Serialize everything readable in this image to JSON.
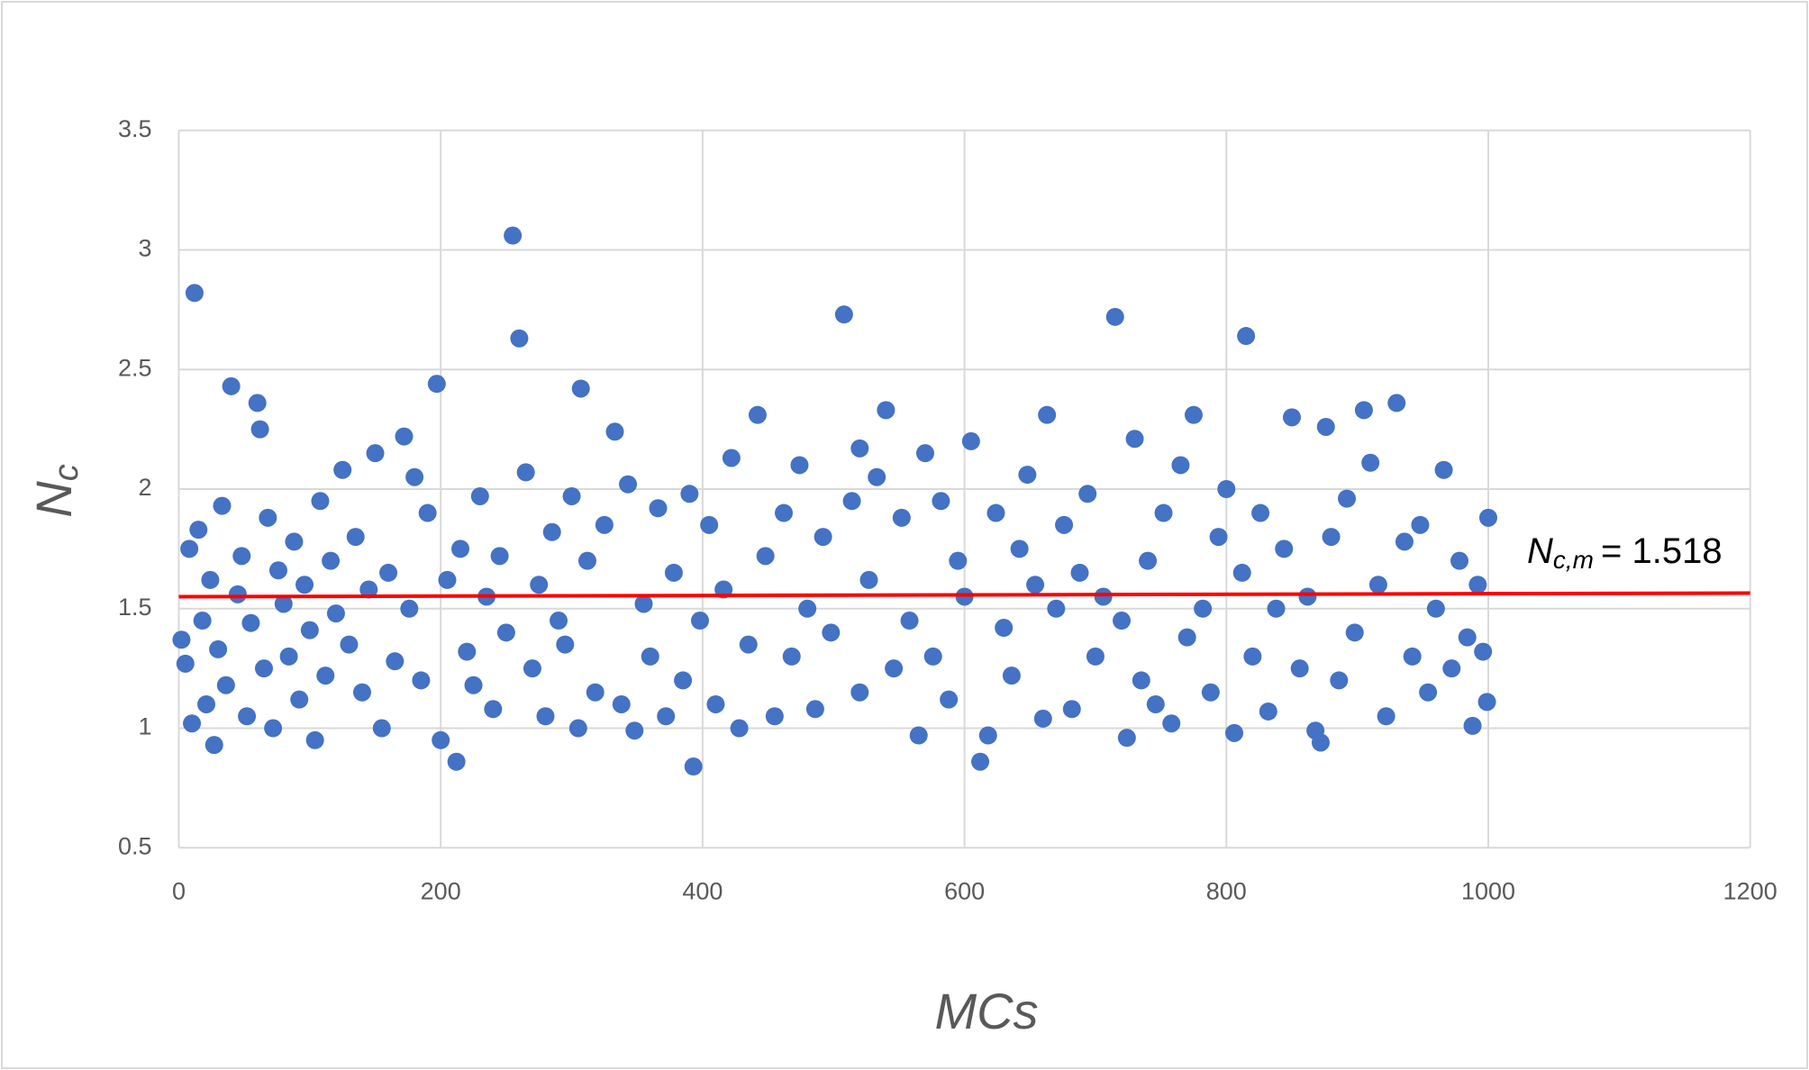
{
  "chart_data": {
    "type": "scatter",
    "x_label": "MCs",
    "y_label": {
      "main": "N",
      "sub": "c"
    },
    "annotation": {
      "main": "N",
      "sub": "c,m",
      "rest": "= 1.518"
    },
    "xlim": [
      0,
      1200
    ],
    "xticks": [
      0,
      200,
      400,
      600,
      800,
      1000,
      1200
    ],
    "ylim": [
      0.5,
      3.5
    ],
    "yticks": [
      0.5,
      1,
      1.5,
      2,
      2.5,
      3,
      3.5
    ],
    "grid": true,
    "series": [
      {
        "color": "#4472c4",
        "x": [
          2,
          5,
          8,
          10,
          15,
          18,
          21,
          24,
          30,
          33,
          36,
          45,
          48,
          52,
          55,
          65,
          68,
          72,
          76,
          80,
          84,
          88,
          92,
          96,
          100,
          104,
          108,
          112,
          116,
          120,
          125,
          130,
          135,
          140,
          145,
          150,
          155,
          160,
          165,
          176,
          180,
          185,
          190,
          200,
          205,
          215,
          220,
          225,
          230,
          235,
          240,
          245,
          250,
          265,
          270,
          275,
          280,
          285,
          290,
          295,
          300,
          305,
          312,
          318,
          325,
          338,
          343,
          348,
          355,
          360,
          366,
          372,
          378,
          385,
          390,
          398,
          405,
          410,
          416,
          422,
          428,
          435,
          448,
          455,
          462,
          468,
          474,
          480,
          486,
          492,
          498,
          514,
          520,
          527,
          533,
          546,
          552,
          558,
          565,
          570,
          576,
          582,
          588,
          595,
          600,
          618,
          624,
          630,
          636,
          642,
          648,
          654,
          660,
          670,
          676,
          682,
          688,
          694,
          700,
          706,
          720,
          724,
          735,
          740,
          746,
          752,
          758,
          765,
          770,
          782,
          788,
          794,
          800,
          806,
          812,
          820,
          826,
          832,
          838,
          844,
          856,
          862,
          868,
          872,
          880,
          886,
          892,
          898,
          910,
          916,
          922,
          936,
          942,
          948,
          954,
          960,
          966,
          972,
          978,
          984,
          988,
          992,
          996,
          1000,
          999,
          12,
          255,
          260,
          508,
          715,
          815,
          393,
          212,
          27,
          612,
          197,
          40,
          60,
          307,
          442,
          540,
          663,
          850,
          905,
          930,
          775,
          172,
          333,
          605,
          730,
          520,
          876,
          62
        ],
        "values": [
          1.37,
          1.27,
          1.75,
          1.02,
          1.83,
          1.45,
          1.1,
          1.62,
          1.33,
          1.93,
          1.18,
          1.56,
          1.72,
          1.05,
          1.44,
          1.25,
          1.88,
          1.0,
          1.66,
          1.52,
          1.3,
          1.78,
          1.12,
          1.6,
          1.41,
          0.95,
          1.95,
          1.22,
          1.7,
          1.48,
          2.08,
          1.35,
          1.8,
          1.15,
          1.58,
          2.15,
          1.0,
          1.65,
          1.28,
          1.5,
          2.05,
          1.2,
          1.9,
          0.95,
          1.62,
          1.75,
          1.32,
          1.18,
          1.97,
          1.55,
          1.08,
          1.72,
          1.4,
          2.07,
          1.25,
          1.6,
          1.05,
          1.82,
          1.45,
          1.35,
          1.97,
          1.0,
          1.7,
          1.15,
          1.85,
          1.1,
          2.02,
          0.99,
          1.52,
          1.3,
          1.92,
          1.05,
          1.65,
          1.2,
          1.98,
          1.45,
          1.85,
          1.1,
          1.58,
          2.13,
          1.0,
          1.35,
          1.72,
          1.05,
          1.9,
          1.3,
          2.1,
          1.5,
          1.08,
          1.8,
          1.4,
          1.95,
          1.15,
          1.62,
          2.05,
          1.25,
          1.88,
          1.45,
          0.97,
          2.15,
          1.3,
          1.95,
          1.12,
          1.7,
          1.55,
          0.97,
          1.9,
          1.42,
          1.22,
          1.75,
          2.06,
          1.6,
          1.04,
          1.5,
          1.85,
          1.08,
          1.65,
          1.98,
          1.3,
          1.55,
          1.45,
          0.96,
          1.2,
          1.7,
          1.1,
          1.9,
          1.02,
          2.1,
          1.38,
          1.5,
          1.15,
          1.8,
          2.0,
          0.98,
          1.65,
          1.3,
          1.9,
          1.07,
          1.5,
          1.75,
          1.25,
          1.55,
          0.99,
          0.94,
          1.8,
          1.2,
          1.96,
          1.4,
          2.11,
          1.6,
          1.05,
          1.78,
          1.3,
          1.85,
          1.15,
          1.5,
          2.08,
          1.25,
          1.7,
          1.38,
          1.01,
          1.6,
          1.32,
          1.88,
          1.11,
          2.82,
          3.06,
          2.63,
          2.73,
          2.72,
          2.64,
          0.84,
          0.86,
          0.93,
          0.86,
          2.44,
          2.43,
          2.36,
          2.42,
          2.31,
          2.33,
          2.31,
          2.3,
          2.33,
          2.36,
          2.31,
          2.22,
          2.24,
          2.2,
          2.21,
          2.17,
          2.26,
          2.25
        ]
      },
      {
        "type": "line",
        "color": "#ff0000",
        "x": [
          0,
          1200
        ],
        "values": [
          1.55,
          1.565
        ]
      }
    ]
  }
}
